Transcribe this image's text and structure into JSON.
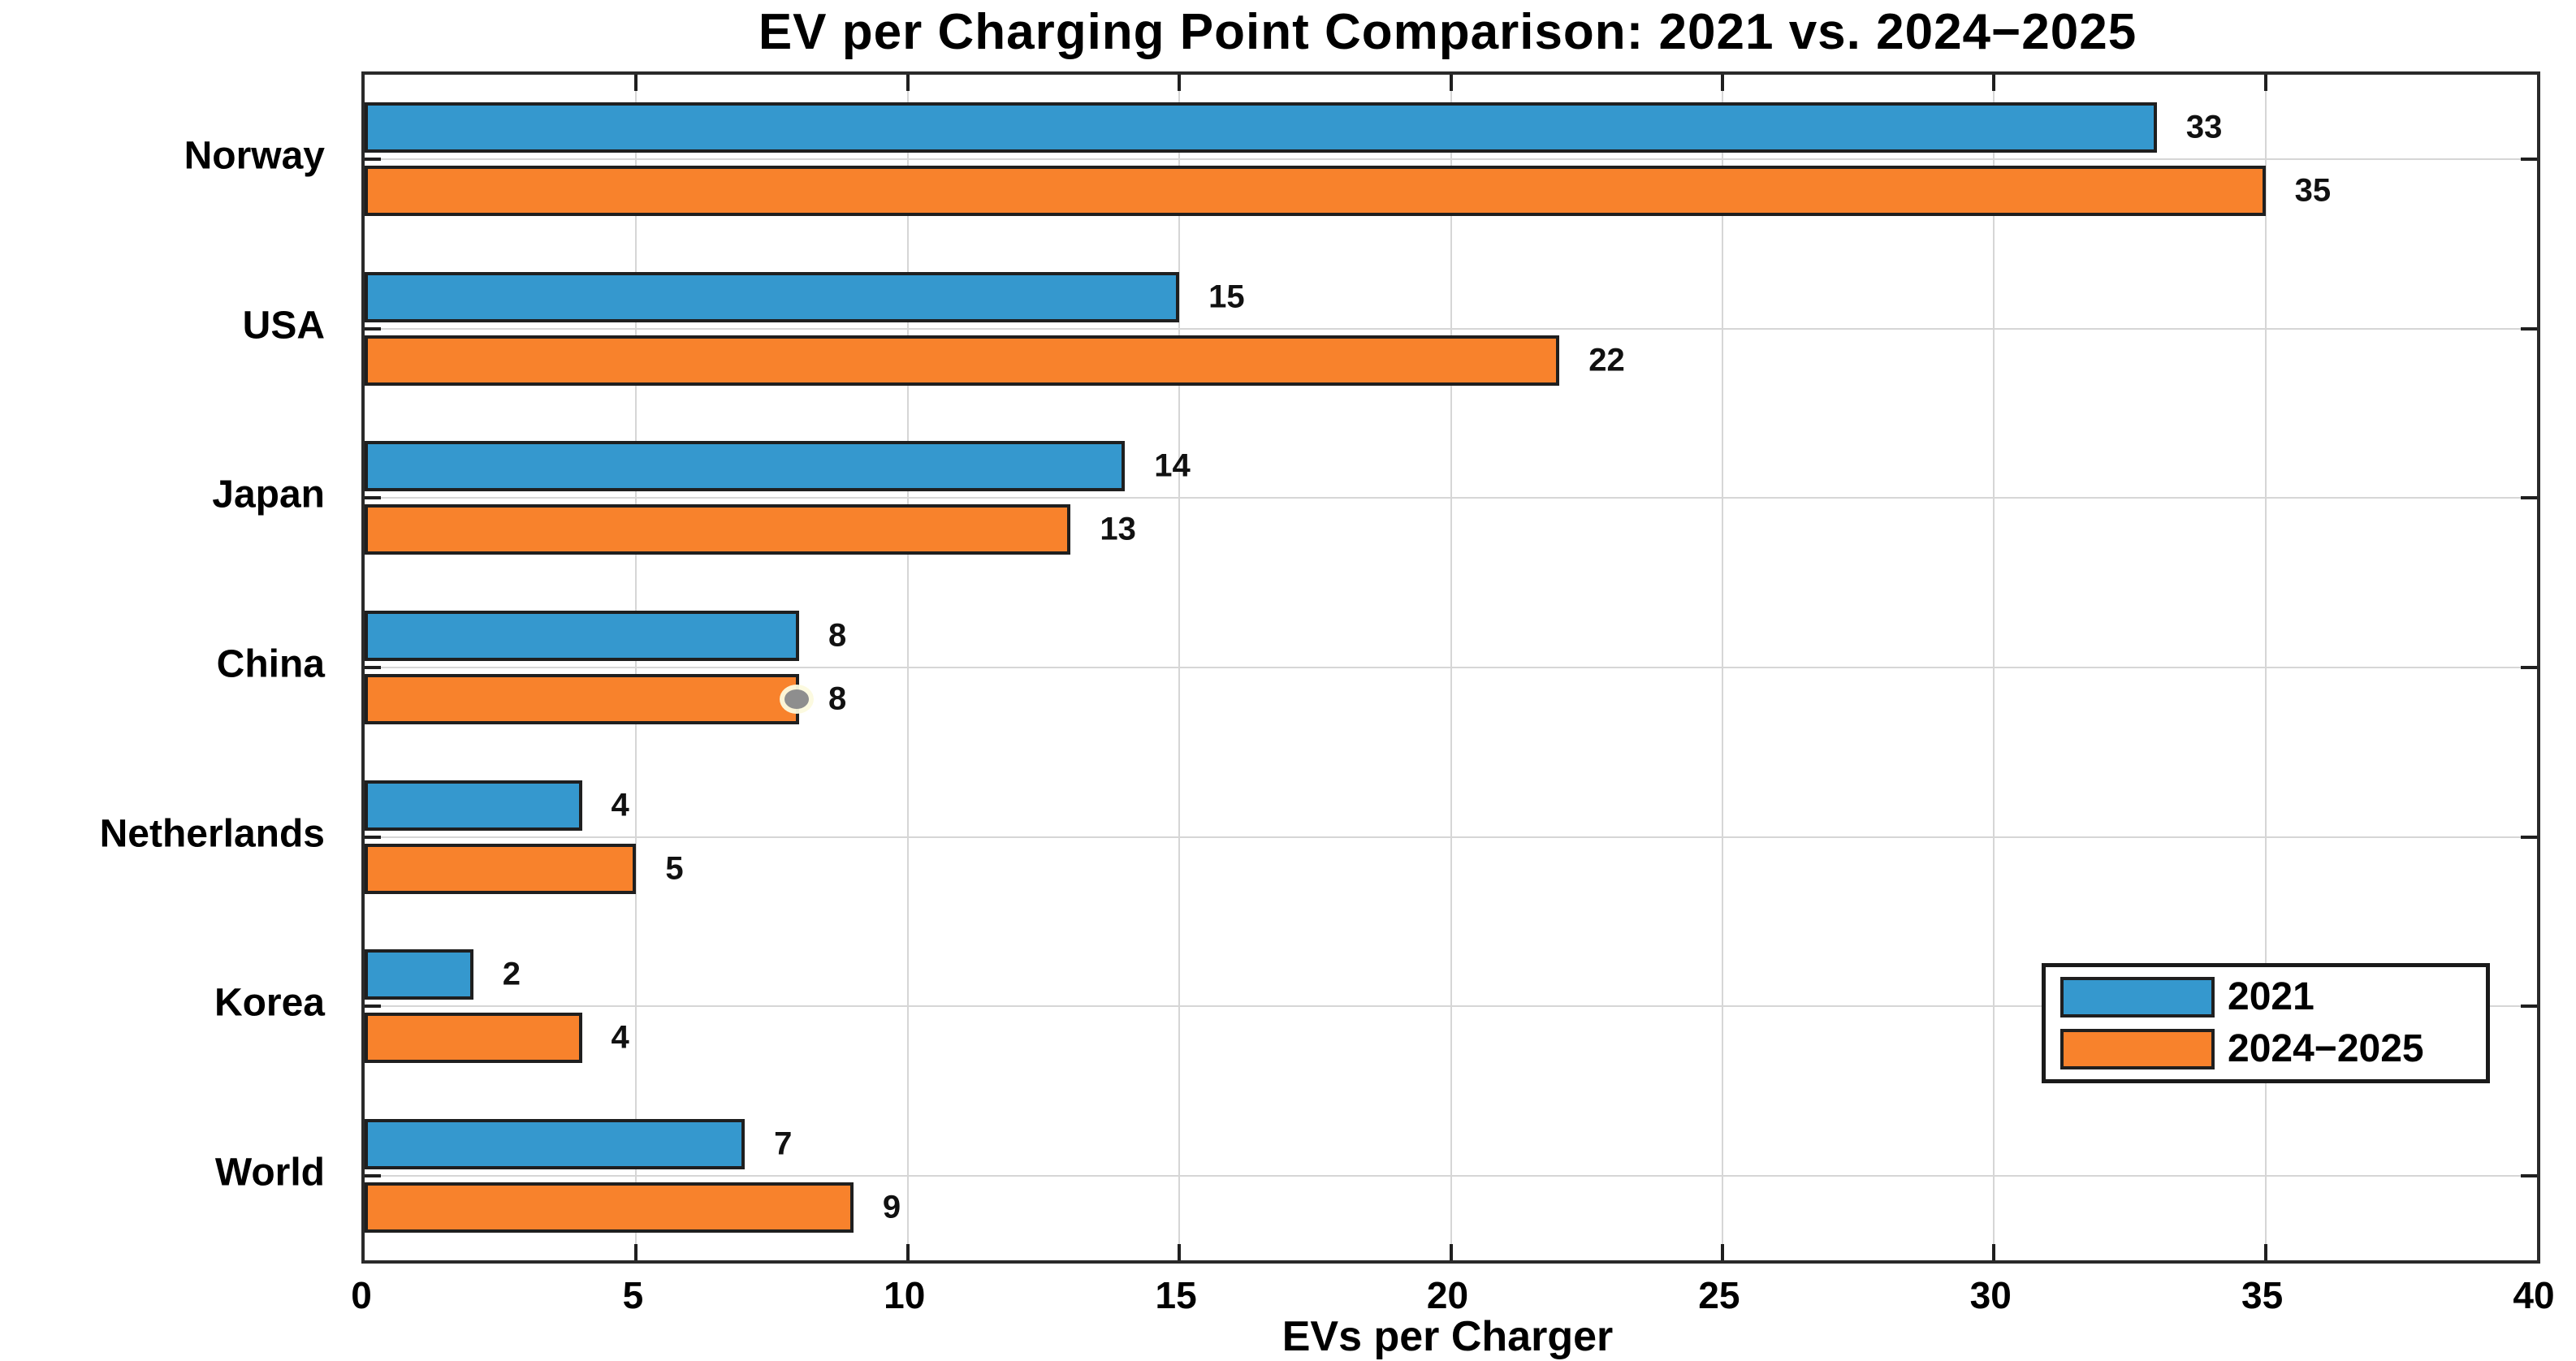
{
  "chart_data": {
    "type": "bar",
    "orientation": "horizontal",
    "title": "EV per Charging Point Comparison: 2021 vs. 2024−2025",
    "xlabel": "EVs per Charger",
    "categories": [
      "Norway",
      "USA",
      "Japan",
      "China",
      "Netherlands",
      "Korea",
      "World"
    ],
    "series": [
      {
        "name": "2021",
        "color": "#3598ce",
        "values": [
          33,
          15,
          14,
          8,
          4,
          2,
          7
        ]
      },
      {
        "name": "2024−2025",
        "color": "#f8822c",
        "values": [
          35,
          22,
          13,
          8,
          5,
          4,
          9
        ]
      }
    ],
    "xlim": [
      0,
      40
    ],
    "xticks": [
      0,
      5,
      10,
      15,
      20,
      25,
      30,
      35,
      40
    ],
    "grid": true,
    "legend_position": "lower right",
    "bar_edge_color": "#1f1f1f",
    "gridline_color": "#d6d6d6",
    "annotation_marker": {
      "category": "China",
      "series": "2024−2025",
      "shape": "gray-dot"
    }
  }
}
